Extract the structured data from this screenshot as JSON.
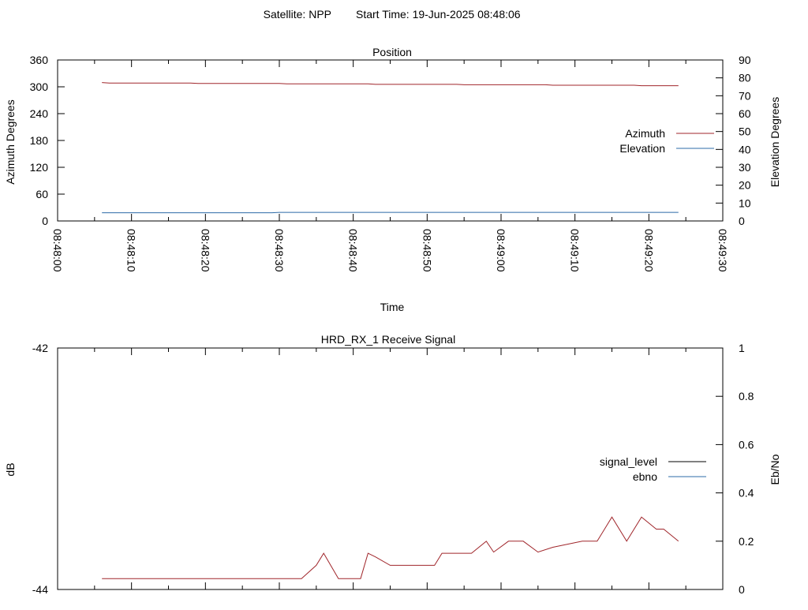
{
  "header": {
    "satellite_label": "Satellite: NPP",
    "start_time_label": "Start Time: 19-Jun-2025 08:48:06"
  },
  "colors": {
    "azimuth": "#a0262b",
    "elevation": "#2c6ba8",
    "signal_level": "#000000",
    "ebno": "#2c6ba8",
    "signal_trace": "#a0262b"
  },
  "chart_data": [
    {
      "type": "line",
      "title": "Position",
      "xlabel": "Time",
      "ylabel": "Azimuth Degrees",
      "y2label": "Elevation Degrees",
      "xlim": [
        "08:48:00",
        "08:49:30"
      ],
      "ylim": [
        0,
        360
      ],
      "y2lim": [
        0,
        90
      ],
      "x_tick_labels": [
        "08:48:00",
        "08:48:10",
        "08:48:20",
        "08:48:30",
        "08:48:40",
        "08:48:50",
        "08:49:00",
        "08:49:10",
        "08:49:20",
        "08:49:30"
      ],
      "y_tick_labels": [
        "0",
        "60",
        "120",
        "180",
        "240",
        "300",
        "360"
      ],
      "y2_tick_labels": [
        "0",
        "10",
        "20",
        "30",
        "40",
        "50",
        "60",
        "70",
        "80",
        "90"
      ],
      "legend_position": "right",
      "grid": false,
      "series": [
        {
          "name": "Azimuth",
          "axis": "y",
          "x": [
            "08:48:06",
            "08:48:07",
            "08:48:18",
            "08:48:19",
            "08:48:30",
            "08:48:31",
            "08:48:42",
            "08:48:43",
            "08:48:54",
            "08:48:55",
            "08:49:06",
            "08:49:07",
            "08:49:18",
            "08:49:19",
            "08:49:24"
          ],
          "values": [
            309.5,
            308.5,
            308.5,
            307.5,
            307.5,
            306.5,
            306.5,
            305.5,
            305.5,
            304.5,
            304.5,
            303.5,
            303.5,
            302.5,
            302.5
          ]
        },
        {
          "name": "Elevation",
          "axis": "y2",
          "x": [
            "08:48:06",
            "08:48:29",
            "08:48:30",
            "08:49:24"
          ],
          "values": [
            4.6,
            4.6,
            4.8,
            4.8
          ]
        }
      ]
    },
    {
      "type": "line",
      "title": "HRD_RX_1 Receive Signal",
      "ylabel": "dB",
      "y2label": "Eb/No",
      "xlim": [
        "08:48:00",
        "08:49:30"
      ],
      "ylim": [
        -44,
        -42
      ],
      "y2lim": [
        0,
        1
      ],
      "y_tick_labels": [
        "-44",
        "-42"
      ],
      "y2_tick_labels": [
        "0",
        "0.2",
        "0.4",
        "0.6",
        "0.8",
        "1"
      ],
      "legend_position": "right",
      "grid": false,
      "series": [
        {
          "name": "signal_level",
          "axis": "y",
          "x": [],
          "values": []
        },
        {
          "name": "ebno",
          "axis": "y2",
          "x": [
            "08:48:06",
            "08:48:33",
            "08:48:35",
            "08:48:36",
            "08:48:38",
            "08:48:41",
            "08:48:42",
            "08:48:43",
            "08:48:45",
            "08:48:51",
            "08:48:52",
            "08:48:56",
            "08:48:58",
            "08:48:59",
            "08:49:01",
            "08:49:03",
            "08:49:05",
            "08:49:07",
            "08:49:11",
            "08:49:13",
            "08:49:15",
            "08:49:17",
            "08:49:19",
            "08:49:21",
            "08:49:22",
            "08:49:24"
          ],
          "values": [
            0.045,
            0.045,
            0.1,
            0.15,
            0.045,
            0.045,
            0.15,
            0.135,
            0.1,
            0.1,
            0.15,
            0.15,
            0.2,
            0.155,
            0.2,
            0.2,
            0.155,
            0.175,
            0.2,
            0.2,
            0.3,
            0.2,
            0.3,
            0.25,
            0.25,
            0.2
          ]
        }
      ]
    }
  ]
}
